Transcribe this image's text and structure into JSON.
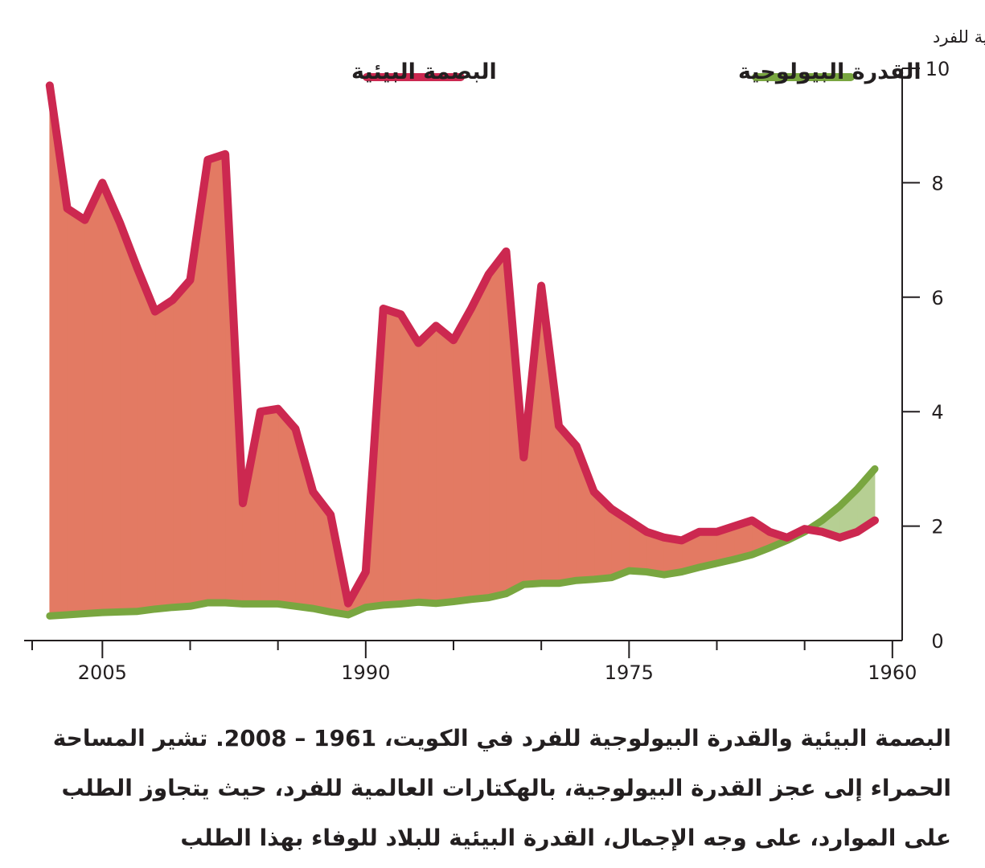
{
  "chart_data": {
    "type": "line",
    "ylabel": "هكتارات عالمية للفرد",
    "ylim": [
      0,
      10
    ],
    "y_ticks": [
      "0",
      "2",
      "4",
      "6",
      "8",
      "10"
    ],
    "x_ticks": [
      "2005",
      "1990",
      "1975",
      "1960"
    ],
    "x_tick_values": [
      2005,
      1990,
      1975,
      1960
    ],
    "xlim": [
      2009,
      1961
    ],
    "x_axis_reversed": true,
    "x_minor_ticks": [
      2009,
      2000,
      1995,
      1985,
      1980,
      1970,
      1965
    ],
    "legend_position": "top",
    "series": [
      {
        "name": "البصمة البيئية",
        "color": "#cc2850",
        "x": [
          1961,
          1962,
          1963,
          1964,
          1965,
          1966,
          1967,
          1968,
          1969,
          1970,
          1971,
          1972,
          1973,
          1974,
          1975,
          1976,
          1977,
          1978,
          1979,
          1980,
          1981,
          1982,
          1983,
          1984,
          1985,
          1986,
          1987,
          1988,
          1989,
          1990,
          1991,
          1992,
          1993,
          1994,
          1995,
          1996,
          1997,
          1998,
          1999,
          2000,
          2001,
          2002,
          2003,
          2004,
          2005,
          2006,
          2007,
          2008
        ],
        "values": [
          2.1,
          1.9,
          1.8,
          1.9,
          1.95,
          1.8,
          1.9,
          2.1,
          2.0,
          1.9,
          1.9,
          1.75,
          1.8,
          1.9,
          2.1,
          2.3,
          2.6,
          3.4,
          3.75,
          6.2,
          3.2,
          6.8,
          6.4,
          5.8,
          5.25,
          5.5,
          5.2,
          5.7,
          5.8,
          1.2,
          0.65,
          2.2,
          2.6,
          3.7,
          4.05,
          4.0,
          2.4,
          8.5,
          8.4,
          6.3,
          5.95,
          5.75,
          6.5,
          7.3,
          8.0,
          7.35,
          7.55,
          9.7
        ]
      },
      {
        "name": "القدرة البيولوجية",
        "color": "#79a640",
        "x": [
          1961,
          1962,
          1963,
          1964,
          1965,
          1966,
          1967,
          1968,
          1969,
          1970,
          1971,
          1972,
          1973,
          1974,
          1975,
          1976,
          1977,
          1978,
          1979,
          1980,
          1981,
          1982,
          1983,
          1984,
          1985,
          1986,
          1987,
          1988,
          1989,
          1990,
          1991,
          1992,
          1993,
          1994,
          1995,
          1996,
          1997,
          1998,
          1999,
          2000,
          2001,
          2002,
          2003,
          2004,
          2005,
          2006,
          2007,
          2008
        ],
        "values": [
          3.0,
          2.65,
          2.35,
          2.1,
          1.9,
          1.75,
          1.62,
          1.5,
          1.42,
          1.35,
          1.28,
          1.2,
          1.15,
          1.2,
          1.22,
          1.1,
          1.07,
          1.05,
          1.0,
          1.0,
          0.98,
          0.82,
          0.75,
          0.72,
          0.68,
          0.65,
          0.67,
          0.64,
          0.62,
          0.58,
          0.45,
          0.5,
          0.56,
          0.6,
          0.64,
          0.64,
          0.64,
          0.66,
          0.66,
          0.6,
          0.58,
          0.55,
          0.51,
          0.5,
          0.49,
          0.47,
          0.45,
          0.43
        ]
      }
    ]
  },
  "caption": {
    "line1": "البصمة البيئية والقدرة البيولوجية للفرد في الكويت، 1961 – 2008. تشير المساحة",
    "line2": "الحمراء إلى عجز القدرة البيولوجية، بالهكتارات العالمية للفرد، حيث يتجاوز الطلب",
    "line3": "على الموارد، على وجه الإجمال، القدرة البيئية للبلاد للوفاء بهذا الطلب"
  },
  "colors": {
    "deficit_fill": "#e37a63",
    "reserve_fill": "#b6cf93",
    "axis": "#231f20"
  }
}
